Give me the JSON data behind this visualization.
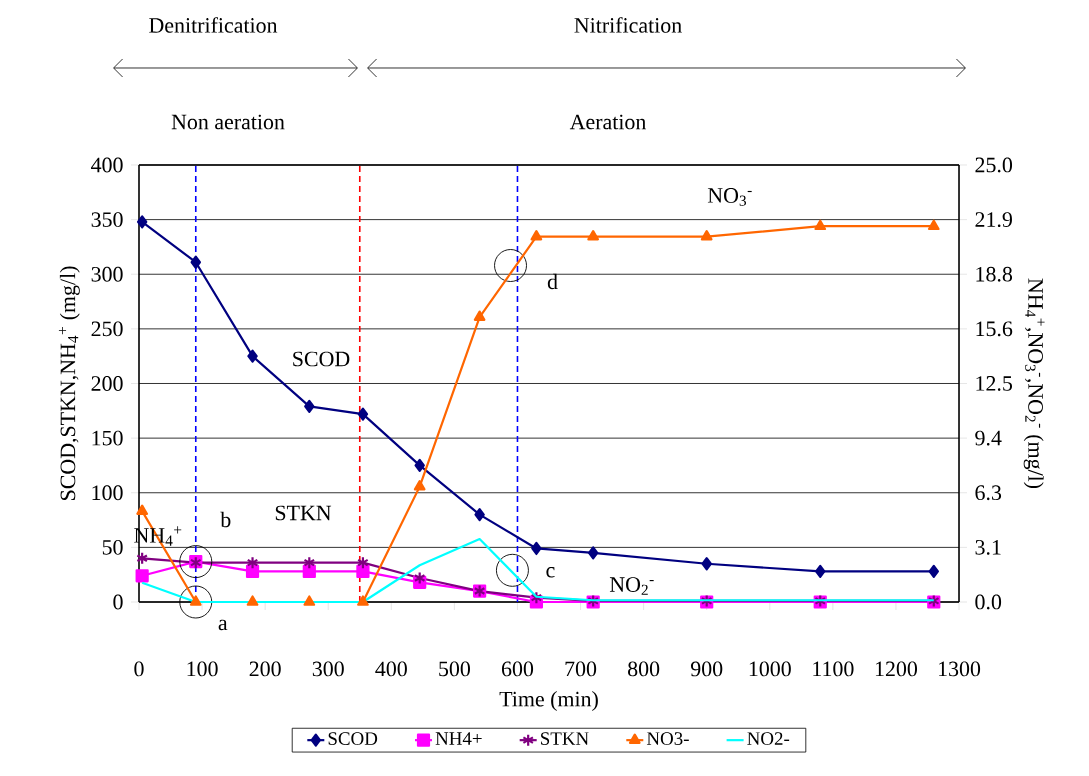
{
  "chart_data": {
    "type": "line",
    "xlabel": "Time (min)",
    "ylabel": "SCOD,STKN,NH$_{4}$$^{+}$ (mg/l)",
    "y2label": "NH$_{4}$$^{+}$,NO$_{3}$$^{-}$,NO$_{2}$$^{-}$ (mg/l)",
    "x": [
      5,
      90,
      180,
      270,
      355,
      445,
      540,
      630,
      720,
      900,
      1080,
      1260
    ],
    "series": [
      {
        "name": "SCOD",
        "color": "#000080",
        "marker": "diamond",
        "values": [
          348,
          311,
          225,
          179,
          172,
          125,
          80,
          49,
          45,
          35,
          28,
          28
        ]
      },
      {
        "name": "NH4+",
        "color": "#ff00ff",
        "marker": "square",
        "values": [
          24,
          37,
          28,
          28,
          28,
          18,
          10,
          0,
          0,
          0,
          0,
          0
        ]
      },
      {
        "name": "STKN",
        "color": "#800080",
        "marker": "cross",
        "values": [
          40,
          36,
          36,
          36,
          36,
          22,
          10,
          4,
          1,
          1,
          1,
          1
        ]
      },
      {
        "name": "NO3-",
        "color": "#ff6600",
        "marker": "triangle",
        "axis": "y2",
        "values": [
          5.2,
          0,
          0,
          0,
          0,
          6.6,
          16.3,
          20.9,
          20.9,
          20.9,
          21.5,
          21.5
        ]
      },
      {
        "name": "NO2-",
        "color": "#00ffff",
        "marker": "none",
        "axis": "y2",
        "values": [
          1.1,
          0,
          0,
          0,
          0,
          2.1,
          3.6,
          0.3,
          0.1,
          0.1,
          0.1,
          0.1
        ]
      }
    ],
    "xlim": [
      0,
      1300
    ],
    "xticks": [
      0,
      100,
      200,
      300,
      400,
      500,
      600,
      700,
      800,
      900,
      1000,
      1100,
      1200,
      1300
    ],
    "ylim": [
      0,
      400
    ],
    "yticks": [
      0,
      50,
      100,
      150,
      200,
      250,
      300,
      350,
      400
    ],
    "y2lim": [
      0,
      25
    ],
    "y2ticks": [
      {
        "value": 0,
        "label": "0.0"
      },
      {
        "value": 3.125,
        "label": "3.1"
      },
      {
        "value": 6.25,
        "label": "6.3"
      },
      {
        "value": 9.375,
        "label": "9.4"
      },
      {
        "value": 12.5,
        "label": "12.5"
      },
      {
        "value": 15.625,
        "label": "15.6"
      },
      {
        "value": 18.75,
        "label": "18.8"
      },
      {
        "value": 21.875,
        "label": "21.9"
      },
      {
        "value": 25,
        "label": "25.0"
      }
    ],
    "ref_lines": [
      {
        "axis": "x",
        "value": 90,
        "color": "#0000ff",
        "line_style": "dashed"
      },
      {
        "axis": "x",
        "value": 350,
        "color": "#ff0000",
        "line_style": "dashed"
      },
      {
        "axis": "x",
        "value": 600,
        "color": "#0000ff",
        "line_style": "dashed"
      }
    ],
    "annotations": [
      "Denitrification",
      "Nitrification",
      "Non aeration",
      "Aeration",
      "SCOD",
      "STKN",
      "NH$_{4}$$^{+}$",
      "NO$_{3}$$^{-}$",
      "NO$_{2}$$^{-}$",
      {
        "text": "a",
        "x": 90,
        "y": 0
      },
      {
        "text": "b",
        "x": 90,
        "y": 37
      },
      {
        "text": "c",
        "x": 592,
        "y": 29
      },
      {
        "text": "d",
        "x": 589,
        "y": 308
      }
    ],
    "grid": "y",
    "legend": "bottom"
  }
}
